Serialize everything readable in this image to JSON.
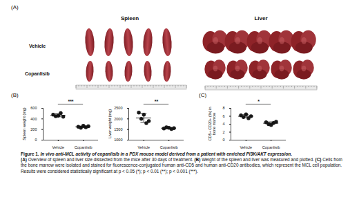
{
  "figure": {
    "panel_a": {
      "label": "(A)",
      "columns": [
        "Spleen",
        "Liver"
      ],
      "rows": [
        "Vehicle",
        "Copanlisib"
      ]
    },
    "panel_b": {
      "label": "(B)"
    },
    "panel_c": {
      "label": "(C)"
    },
    "caption": {
      "figure_label": "Figure 1.",
      "title": "In vivo anti-MCL activity of copanlisib in a PDX mouse model derived from a patient with enriched PI3K/AKT expression.",
      "body": [
        {
          "label": "(A)",
          "text": "Overview of spleen and liver size dissected from the mice after 30 days of treatment."
        },
        {
          "label": "(B)",
          "text": "Weight of the spleen and liver was measured and plotted."
        },
        {
          "label": "(C)",
          "text": "Cells from the bone marrow were isolated and stained for fluorescence-conjugated human anti-CD5 and human anti-CD20 antibodies, which represent the MCL cell population. Results were considered statistically significant at p < 0.05 (*); p < 0.01 (**); p < 0.001 (***)."
        }
      ]
    }
  },
  "chart_data": [
    {
      "type": "scatter",
      "y_label": "Spleen weight (mg)",
      "categories": [
        "Vehicle",
        "Copanlisib"
      ],
      "values": [
        [
          480,
          450,
          460,
          510,
          440
        ],
        [
          250,
          230,
          270,
          240,
          260
        ]
      ],
      "color": "#1a1a1a",
      "marker": "circle",
      "ylim": [
        0,
        600
      ],
      "yticks": [
        0,
        200,
        400,
        600
      ],
      "annotation": "***"
    },
    {
      "type": "scatter",
      "y_label": "Liver weight (mg)",
      "categories": [
        "Vehicle",
        "Copanlisib"
      ],
      "values": [
        [
          2300,
          2000,
          2200,
          1800,
          1900
        ],
        [
          1550,
          1600,
          1580,
          1520,
          1560
        ]
      ],
      "color": "#1a1a1a",
      "marker": "circle",
      "ylim": [
        1000,
        2500
      ],
      "yticks": [
        1000,
        1500,
        2000,
        2500
      ],
      "annotation": "**"
    },
    {
      "type": "scatter",
      "y_label": "CD5+ CD20+ (%) in bone marrow",
      "categories": [
        "Vehicle",
        "Copanlisib"
      ],
      "values": [
        [
          6.2,
          5.8,
          6.5,
          5.5,
          6.0
        ],
        [
          4.5,
          4.0,
          3.8,
          4.3,
          4.6
        ]
      ],
      "color": "#1a1a1a",
      "marker": "circle",
      "ylim": [
        0,
        8
      ],
      "yticks": [
        0,
        2,
        4,
        6,
        8
      ],
      "annotation": "*"
    }
  ]
}
